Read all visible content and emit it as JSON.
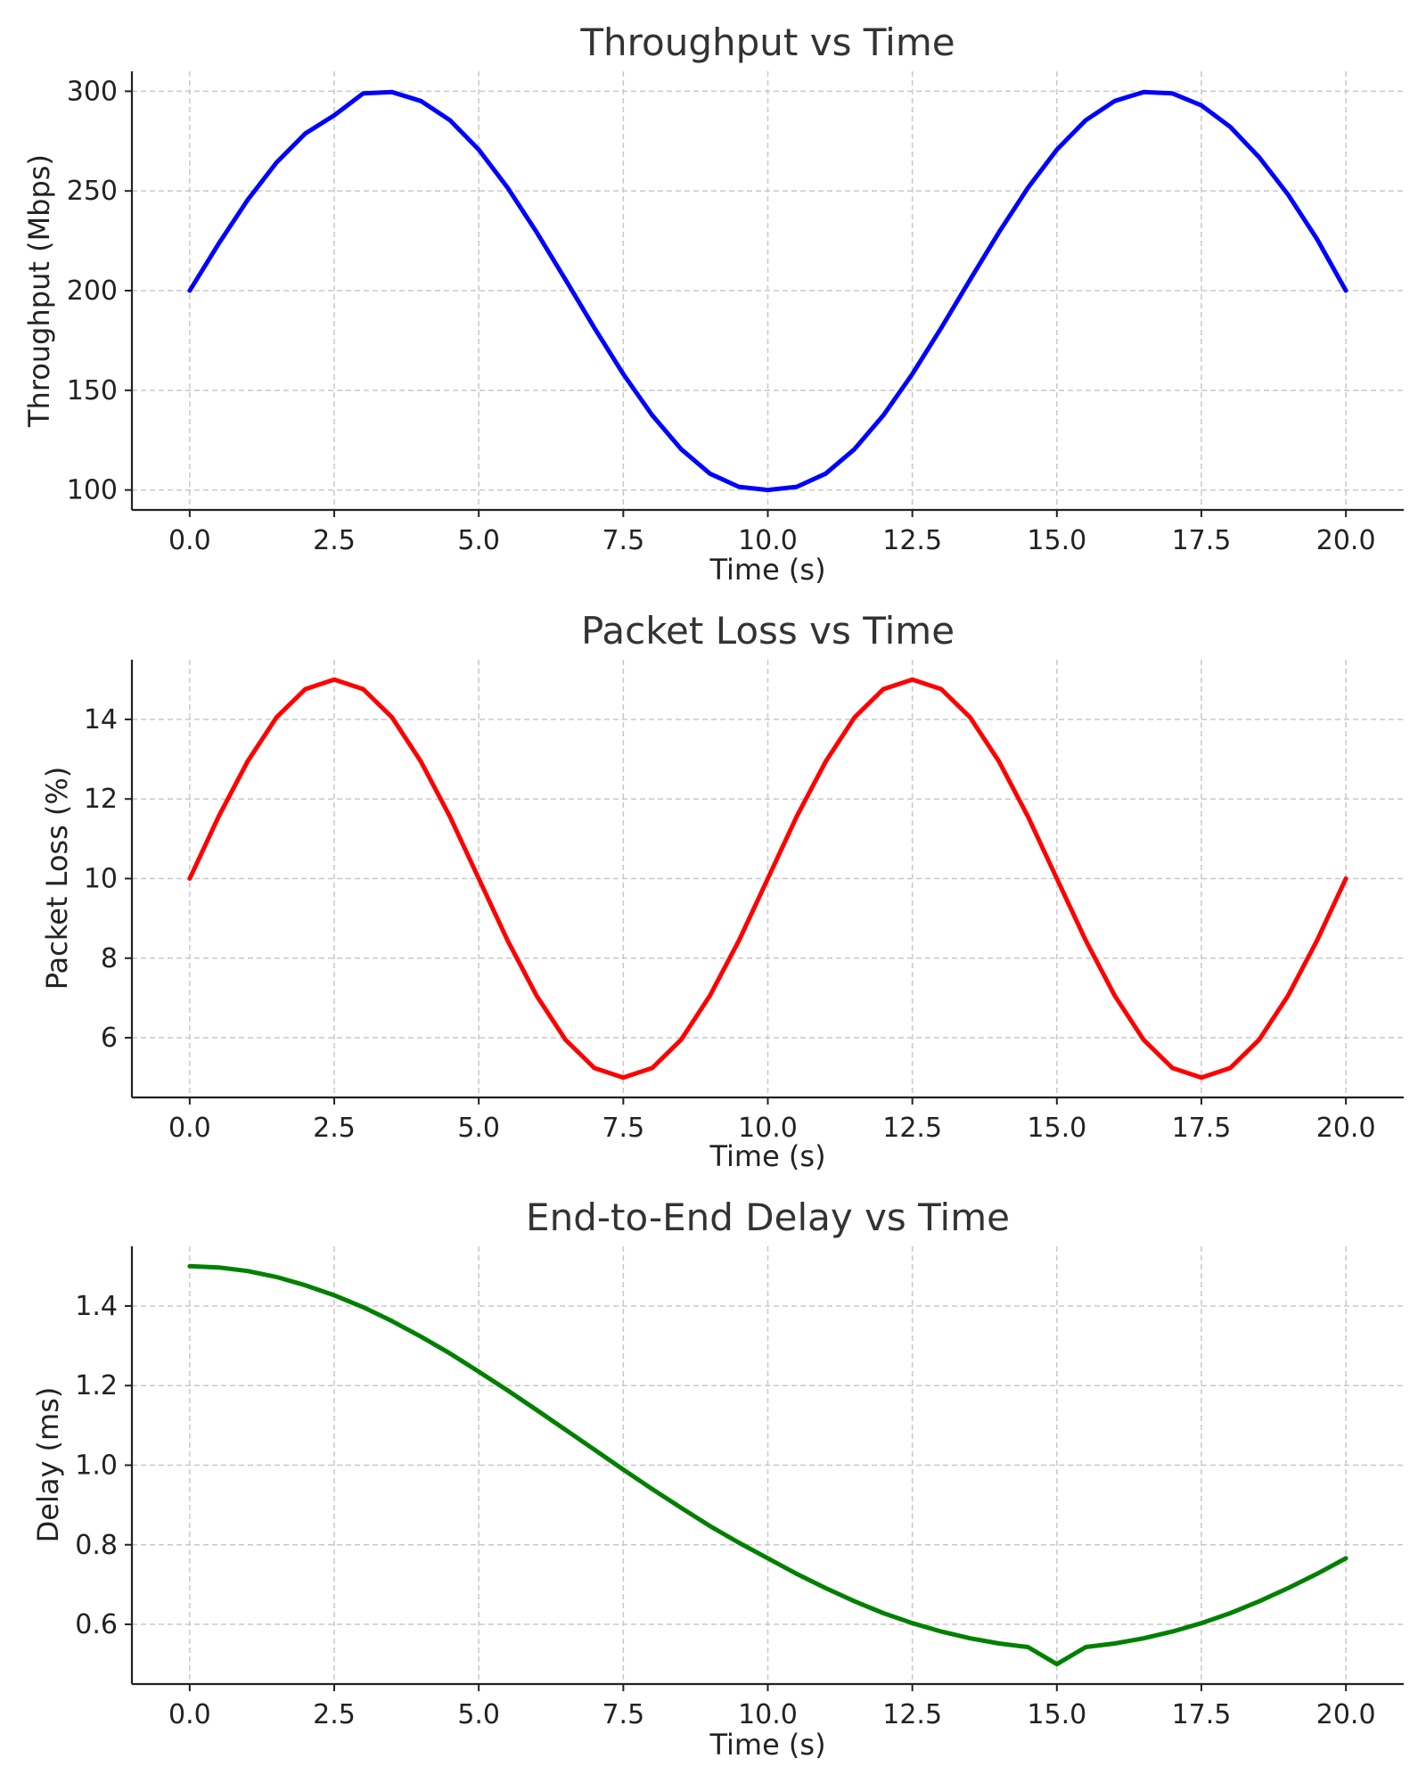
{
  "chart_data": [
    {
      "type": "line",
      "title": "Throughput vs Time",
      "xlabel": "Time (s)",
      "ylabel": "Throughput (Mbps)",
      "xlim": [
        -1,
        21
      ],
      "ylim": [
        90,
        310
      ],
      "x_ticks": [
        0,
        2.5,
        5,
        7.5,
        10,
        12.5,
        15,
        17.5,
        20
      ],
      "x_tick_labels": [
        "0.0",
        "2.5",
        "5.0",
        "7.5",
        "10.0",
        "12.5",
        "15.0",
        "17.5",
        "20.0"
      ],
      "y_ticks": [
        100,
        150,
        200,
        250,
        300
      ],
      "y_tick_labels": [
        "100",
        "150",
        "200",
        "250",
        "300"
      ],
      "grid": true,
      "series": [
        {
          "color": "#0000ff",
          "x": [
            0,
            0.5,
            1,
            1.5,
            2,
            2.5,
            3,
            3.5,
            4,
            4.5,
            5,
            5.5,
            6,
            6.5,
            7,
            7.5,
            8,
            8.5,
            9,
            9.5,
            10,
            10.5,
            11,
            11.5,
            12,
            12.5,
            13,
            13.5,
            14,
            14.5,
            15,
            15.5,
            16,
            16.5,
            17,
            17.5,
            18,
            18.5,
            19,
            19.5,
            20
          ],
          "y": [
            200,
            223.5,
            245.4,
            264.2,
            278.8,
            287.9,
            298.9,
            299.6,
            295.1,
            285.5,
            270.7,
            251.6,
            229.4,
            205.5,
            181.3,
            158.2,
            137.5,
            120.5,
            108.2,
            101.6,
            100,
            101.6,
            108.2,
            120.5,
            137.5,
            158.2,
            181.3,
            205.5,
            229.4,
            251.6,
            270.7,
            285.5,
            295.1,
            299.6,
            298.9,
            292.9,
            282.1,
            266.9,
            248.1,
            225.9,
            200
          ]
        }
      ]
    },
    {
      "type": "line",
      "title": "Packet Loss vs Time",
      "xlabel": "Time (s)",
      "ylabel": "Packet Loss (%)",
      "xlim": [
        -1,
        21
      ],
      "ylim": [
        4.5,
        15.5
      ],
      "x_ticks": [
        0,
        2.5,
        5,
        7.5,
        10,
        12.5,
        15,
        17.5,
        20
      ],
      "x_tick_labels": [
        "0.0",
        "2.5",
        "5.0",
        "7.5",
        "10.0",
        "12.5",
        "15.0",
        "17.5",
        "20.0"
      ],
      "y_ticks": [
        6,
        8,
        10,
        12,
        14
      ],
      "y_tick_labels": [
        "6",
        "8",
        "10",
        "12",
        "14"
      ],
      "grid": true,
      "series": [
        {
          "color": "#ff0000",
          "x": [
            0,
            0.5,
            1,
            1.5,
            2,
            2.5,
            3,
            3.5,
            4,
            4.5,
            5,
            5.5,
            6,
            6.5,
            7,
            7.5,
            8,
            8.5,
            9,
            9.5,
            10,
            10.5,
            11,
            11.5,
            12,
            12.5,
            13,
            13.5,
            14,
            14.5,
            15,
            15.5,
            16,
            16.5,
            17,
            17.5,
            18,
            18.5,
            19,
            19.5,
            20
          ],
          "y": [
            10,
            11.56,
            12.94,
            14.05,
            14.76,
            15,
            14.76,
            14.05,
            12.94,
            11.56,
            10,
            8.44,
            7.06,
            5.95,
            5.24,
            5,
            5.24,
            5.95,
            7.06,
            8.44,
            10,
            11.56,
            12.94,
            14.05,
            14.76,
            15,
            14.76,
            14.05,
            12.94,
            11.56,
            10,
            8.44,
            7.06,
            5.95,
            5.24,
            5,
            5.24,
            5.95,
            7.06,
            8.44,
            10
          ]
        }
      ]
    },
    {
      "type": "line",
      "title": "End-to-End Delay vs Time",
      "xlabel": "Time (s)",
      "ylabel": "Delay (ms)",
      "xlim": [
        -1,
        21
      ],
      "ylim": [
        0.45,
        1.55
      ],
      "x_ticks": [
        0,
        2.5,
        5,
        7.5,
        10,
        12.5,
        15,
        17.5,
        20
      ],
      "x_tick_labels": [
        "0.0",
        "2.5",
        "5.0",
        "7.5",
        "10.0",
        "12.5",
        "15.0",
        "17.5",
        "20.0"
      ],
      "y_ticks": [
        0.6,
        0.8,
        1.0,
        1.2,
        1.4
      ],
      "y_tick_labels": [
        "0.6",
        "0.8",
        "1.0",
        "1.2",
        "1.4"
      ],
      "grid": true,
      "series": [
        {
          "color": "#008000",
          "x": [
            0,
            0.5,
            1,
            1.5,
            2,
            2.5,
            3,
            3.5,
            4,
            4.5,
            5,
            5.5,
            6,
            6.5,
            7,
            7.5,
            8,
            8.5,
            9,
            9.5,
            10,
            10.5,
            11,
            11.5,
            12,
            12.5,
            13,
            13.5,
            14,
            14.5,
            15,
            15.5,
            16,
            16.5,
            17,
            17.5,
            18,
            18.5,
            19,
            19.5,
            20
          ],
          "y": [
            1.5,
            1.497,
            1.488,
            1.473,
            1.452,
            1.427,
            1.397,
            1.362,
            1.323,
            1.281,
            1.235,
            1.188,
            1.139,
            1.089,
            1.039,
            0.989,
            0.94,
            0.893,
            0.847,
            0.805,
            0.766,
            0.727,
            0.691,
            0.658,
            0.628,
            0.603,
            0.582,
            0.565,
            0.552,
            0.543,
            0.5,
            0.543,
            0.552,
            0.565,
            0.582,
            0.603,
            0.628,
            0.658,
            0.691,
            0.727,
            0.766
          ]
        }
      ]
    }
  ]
}
